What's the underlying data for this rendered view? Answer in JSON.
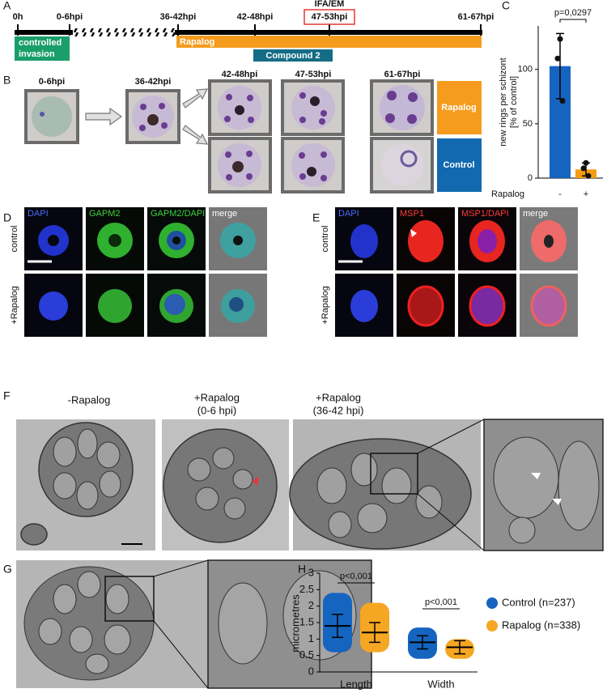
{
  "figure": {
    "A": {
      "label": "A",
      "timepoints": [
        "0h",
        "0-6hpi",
        "36-42hpi",
        "42-48hpi",
        "47-53hpi",
        "61-67hpi"
      ],
      "ifa_em": "IFA/EM",
      "invasion": [
        "controlled",
        "invasion"
      ],
      "rapalog": "Rapalog",
      "compound": "Compound 2"
    },
    "B": {
      "label": "B",
      "stages": [
        "0-6hpi",
        "36-42hpi",
        "42-48hpi",
        "47-53hpi",
        "61-67hpi"
      ],
      "rows": [
        "Rapalog",
        "Control"
      ]
    },
    "D": {
      "label": "D",
      "channels": [
        "DAPI",
        "GAPM2",
        "GAPM2/DAPI",
        "merge"
      ],
      "rows": [
        "control",
        "+Rapalog"
      ]
    },
    "E": {
      "label": "E",
      "channels": [
        "DAPI",
        "MSP1",
        "MSP1/DAPI",
        "merge"
      ],
      "rows": [
        "control",
        "+Rapalog"
      ]
    },
    "F": {
      "label": "F",
      "conditions": [
        [
          "-Rapalog"
        ],
        [
          "+Rapalog",
          "(0-6 hpi)"
        ],
        [
          "+Rapalog",
          "(36-42 hpi)"
        ]
      ]
    },
    "G": {
      "label": "G"
    }
  },
  "chart_data": [
    {
      "type": "bar",
      "panel_label": "C",
      "y_label": [
        "new rings per schizont",
        "[% of control]"
      ],
      "x_label": "Rapalog",
      "categories": [
        "-",
        "+"
      ],
      "values": [
        103,
        8
      ],
      "errors": [
        30,
        6
      ],
      "points": [
        [
          128,
          110,
          71
        ],
        [
          14,
          9,
          2
        ]
      ],
      "colors": [
        "#1565c0",
        "#f39c12"
      ],
      "ylim": [
        0,
        140
      ],
      "yticks": [
        0,
        50,
        100
      ],
      "annotation": "p=0,0297"
    },
    {
      "type": "dot",
      "panel_label": "H",
      "y_label": "micrometres",
      "categories": [
        "Length",
        "Width"
      ],
      "series": [
        {
          "name": "Control (n=237)",
          "color": "#1565c0",
          "values": [
            1.4,
            0.9
          ],
          "errors": [
            0.35,
            0.2
          ],
          "ranges": [
            [
              0.6,
              2.4
            ],
            [
              0.4,
              1.35
            ]
          ]
        },
        {
          "name": "Rapalog (n=338)",
          "color": "#f5a623",
          "values": [
            1.2,
            0.75
          ],
          "errors": [
            0.3,
            0.2
          ],
          "ranges": [
            [
              0.6,
              2.1
            ],
            [
              0.4,
              1.0
            ]
          ]
        }
      ],
      "ylim": [
        0,
        3
      ],
      "yticks": [
        0,
        0.5,
        1,
        1.5,
        2,
        2.5,
        3
      ],
      "annotations": [
        "p<0,001",
        "p<0,001"
      ]
    }
  ]
}
